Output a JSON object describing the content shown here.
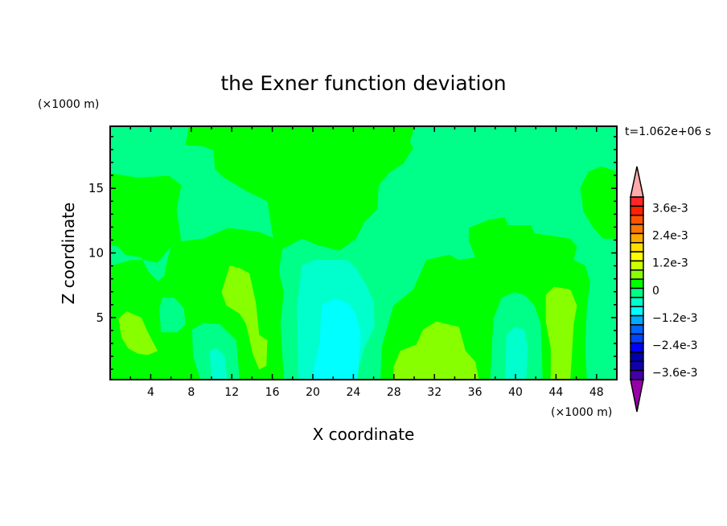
{
  "chart_data": {
    "type": "contour",
    "title": "the Exner function deviation",
    "xlabel": "X coordinate",
    "ylabel": "Z coordinate",
    "x_unit": "(×1000 m)",
    "y_unit": "(×1000 m)",
    "time_label": "t=1.062e+06 s",
    "xlim": [
      0,
      50
    ],
    "ylim": [
      0.2,
      19.8
    ],
    "x_ticks": [
      4,
      8,
      12,
      16,
      20,
      24,
      28,
      32,
      36,
      40,
      44,
      48
    ],
    "y_ticks": [
      5,
      10,
      15
    ],
    "grid": false,
    "colorbar": {
      "position": "right",
      "labels": [
        "3.6e-3",
        "2.4e-3",
        "1.2e-3",
        "0",
        "−1.2e-3",
        "−2.4e-3",
        "−3.6e-3"
      ],
      "over_color": "#ffaaaa",
      "under_color": "#9900aa",
      "colors": [
        "#ff2828",
        "#ff2200",
        "#ff5500",
        "#ff7700",
        "#ffaa00",
        "#ffdd00",
        "#ffff00",
        "#ccff00",
        "#88ff00",
        "#00ff00",
        "#00ff88",
        "#00ffcc",
        "#00ffff",
        "#00aaff",
        "#0066ff",
        "#0044ff",
        "#0000ff",
        "#0000aa",
        "#1100aa",
        "#4400aa"
      ]
    },
    "field_colors": {
      "background": "#00ff88",
      "positive_small": "#00ff00",
      "positive_medium": "#88ff00",
      "negative_small": "#00ffcc",
      "negative_medium": "#00ffff"
    }
  }
}
